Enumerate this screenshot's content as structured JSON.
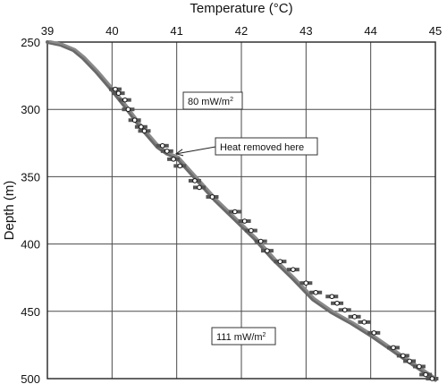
{
  "chart_data": {
    "type": "line",
    "title": "",
    "xlabel": "Temperature (°C)",
    "ylabel": "Depth (m)",
    "xlim": [
      39,
      45
    ],
    "ylim": [
      500,
      250
    ],
    "x_axis_position": "top",
    "y_axis_inverted": true,
    "grid": true,
    "x_ticks": [
      "39",
      "40",
      "41",
      "42",
      "43",
      "44",
      "45"
    ],
    "y_ticks": [
      "250",
      "300",
      "350",
      "400",
      "450",
      "500"
    ],
    "series": [
      {
        "style": "thick-curve",
        "color": "#6a6a6a",
        "x": [
          39.0,
          39.2,
          39.4,
          39.55,
          39.75,
          40.0,
          40.2,
          40.45,
          40.7,
          40.85,
          41.0,
          41.3,
          41.6,
          41.9,
          42.2,
          42.5,
          42.8,
          43.1,
          43.4,
          43.7,
          44.0,
          44.3,
          44.6,
          44.85,
          45.0
        ],
        "y": [
          250,
          252,
          256,
          262,
          272,
          286,
          298,
          314,
          328,
          333,
          336,
          352,
          368,
          382,
          396,
          412,
          426,
          441,
          451,
          459,
          468,
          478,
          488,
          496,
          501
        ]
      },
      {
        "style": "markers-with-error-bars",
        "color": "#333333",
        "x": [
          40.05,
          40.1,
          40.2,
          40.25,
          40.35,
          40.45,
          40.5,
          40.78,
          40.85,
          40.95,
          41.05,
          41.28,
          41.35,
          41.55,
          41.9,
          42.05,
          42.15,
          42.3,
          42.4,
          42.6,
          42.8,
          43.0,
          43.15,
          43.4,
          43.48,
          43.6,
          43.75,
          43.9,
          44.05,
          44.35,
          44.5,
          44.6,
          44.75,
          44.85,
          44.95
        ],
        "y": [
          285,
          288,
          293,
          300,
          308,
          313,
          316,
          327,
          331,
          337,
          342,
          353,
          358,
          365,
          376,
          383,
          390,
          398,
          405,
          413,
          419,
          429,
          436,
          439,
          444,
          449,
          454,
          458,
          466,
          477,
          483,
          487,
          491,
          497,
          500
        ]
      }
    ],
    "annotations": [
      {
        "text": "80 mW/m",
        "sup": "2"
      },
      {
        "text": "Heat removed here",
        "arrow_to": {
          "x": 40.95,
          "y": 333
        }
      },
      {
        "text": "111 mW/m",
        "sup": "2"
      }
    ]
  }
}
